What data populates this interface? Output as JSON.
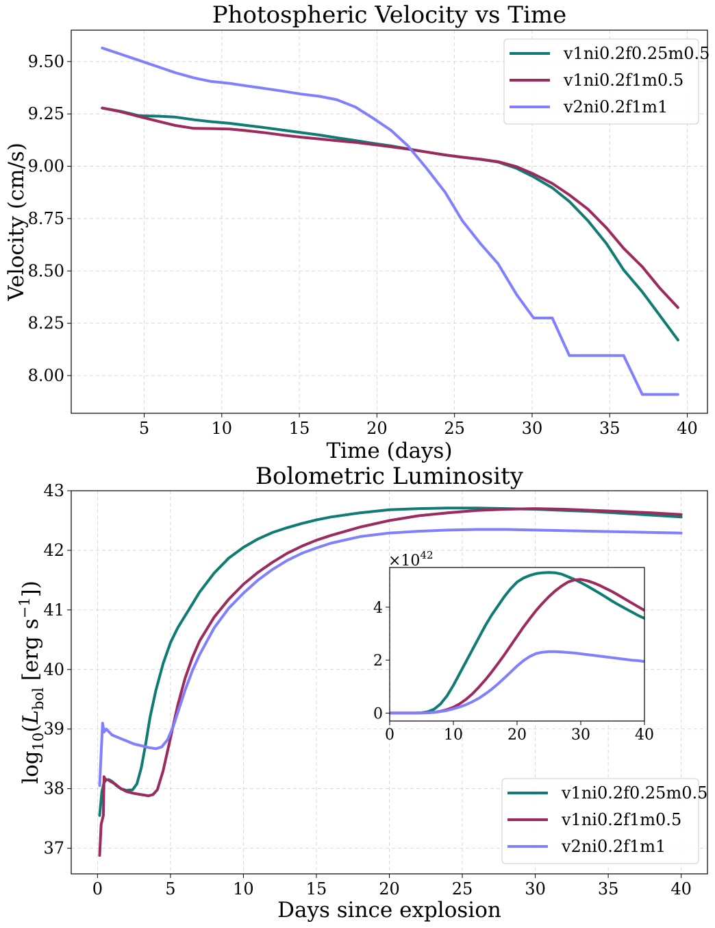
{
  "colors": {
    "series1": "#0f7b73",
    "series2": "#9c2a5c",
    "series3": "#8080ff"
  },
  "chart_data": [
    {
      "type": "line",
      "title": "Photospheric Velocity vs Time",
      "xlabel": "Time (days)",
      "ylabel": "Velocity (cm/s)",
      "xlim": [
        0.3,
        41.3
      ],
      "ylim": [
        7.82,
        9.65
      ],
      "xticks": [
        5,
        10,
        15,
        20,
        25,
        30,
        35,
        40
      ],
      "xtick_labels": [
        "5",
        "10",
        "15",
        "20",
        "25",
        "30",
        "35",
        "40"
      ],
      "yticks": [
        8.0,
        8.25,
        8.5,
        8.75,
        9.0,
        9.25,
        9.5
      ],
      "ytick_labels": [
        "8.00",
        "8.25",
        "8.50",
        "8.75",
        "9.00",
        "9.25",
        "9.50"
      ],
      "grid": true,
      "legend_position": "upper right",
      "series": [
        {
          "name": "v1ni0.2f0.25m0.5",
          "color": "#0f7b73",
          "x": [
            2.3,
            3.5,
            4.7,
            5.9,
            7.0,
            8.2,
            9.3,
            10.5,
            11.6,
            12.8,
            14.0,
            15.1,
            16.3,
            17.4,
            18.6,
            19.7,
            20.9,
            22.0,
            23.2,
            24.4,
            25.5,
            26.7,
            27.8,
            29.0,
            30.1,
            31.3,
            32.4,
            33.6,
            34.8,
            35.9,
            37.1,
            38.2,
            39.4
          ],
          "y": [
            9.278,
            9.262,
            9.241,
            9.239,
            9.235,
            9.222,
            9.213,
            9.205,
            9.195,
            9.184,
            9.172,
            9.161,
            9.149,
            9.136,
            9.123,
            9.11,
            9.097,
            9.083,
            9.068,
            9.054,
            9.043,
            9.033,
            9.02,
            8.99,
            8.949,
            8.897,
            8.832,
            8.74,
            8.63,
            8.505,
            8.4,
            8.29,
            8.17
          ]
        },
        {
          "name": "v1ni0.2f1m0.5",
          "color": "#9c2a5c",
          "x": [
            2.3,
            3.5,
            4.7,
            5.9,
            7.0,
            8.2,
            9.3,
            10.5,
            11.6,
            12.8,
            14.0,
            15.1,
            16.3,
            17.4,
            18.6,
            19.7,
            20.9,
            22.0,
            23.2,
            24.4,
            25.5,
            26.7,
            27.8,
            29.0,
            30.1,
            31.3,
            32.4,
            33.6,
            34.8,
            35.9,
            37.1,
            38.2,
            39.4
          ],
          "y": [
            9.278,
            9.26,
            9.237,
            9.215,
            9.195,
            9.181,
            9.18,
            9.178,
            9.17,
            9.16,
            9.148,
            9.139,
            9.13,
            9.122,
            9.114,
            9.104,
            9.093,
            9.082,
            9.068,
            9.054,
            9.043,
            9.033,
            9.022,
            8.998,
            8.963,
            8.918,
            8.863,
            8.795,
            8.705,
            8.608,
            8.52,
            8.42,
            8.325
          ]
        },
        {
          "name": "v2ni0.2f1m1",
          "color": "#8080ff",
          "x": [
            2.3,
            3.5,
            4.7,
            5.9,
            7.0,
            8.2,
            9.3,
            10.5,
            11.6,
            12.8,
            14.0,
            15.1,
            16.3,
            17.4,
            18.6,
            19.7,
            20.9,
            22.0,
            23.2,
            24.4,
            25.5,
            26.7,
            27.8,
            29.0,
            30.1,
            31.3,
            32.4,
            33.6,
            34.8,
            35.9,
            37.1,
            38.2,
            39.4
          ],
          "y": [
            9.565,
            9.535,
            9.505,
            9.475,
            9.447,
            9.422,
            9.405,
            9.396,
            9.384,
            9.371,
            9.358,
            9.345,
            9.334,
            9.318,
            9.283,
            9.232,
            9.172,
            9.097,
            8.99,
            8.875,
            8.74,
            8.628,
            8.535,
            8.387,
            8.275,
            8.275,
            8.096,
            8.096,
            8.096,
            8.096,
            7.91,
            7.91,
            7.91
          ]
        }
      ]
    },
    {
      "type": "line",
      "title": "Bolometric Luminosity",
      "xlabel": "Days since explosion",
      "ylabel": "log10(L_bol [erg s^-1])",
      "xlim": [
        -1.8,
        41.8
      ],
      "ylim": [
        36.57,
        43.0
      ],
      "xticks": [
        0,
        5,
        10,
        15,
        20,
        25,
        30,
        35,
        40
      ],
      "xtick_labels": [
        "0",
        "5",
        "10",
        "15",
        "20",
        "25",
        "30",
        "35",
        "40"
      ],
      "yticks": [
        37,
        38,
        39,
        40,
        41,
        42,
        43
      ],
      "ytick_labels": [
        "37",
        "38",
        "39",
        "40",
        "41",
        "42",
        "43"
      ],
      "grid": true,
      "legend_position": "lower right",
      "series": [
        {
          "name": "v1ni0.2f0.25m0.5",
          "color": "#0f7b73",
          "x": [
            0.15,
            0.3,
            0.45,
            0.6,
            0.8,
            1.0,
            1.3,
            1.6,
            2.0,
            2.4,
            2.7,
            3.0,
            3.3,
            3.6,
            4.0,
            4.5,
            5.0,
            5.5,
            6.0,
            6.5,
            7.0,
            8.0,
            9.0,
            10.0,
            11.0,
            12.0,
            13.0,
            14.0,
            15.0,
            16.0,
            18.0,
            20.0,
            22.0,
            24.0,
            26.0,
            28.0,
            30.0,
            32.0,
            34.0,
            36.0,
            38.0,
            40.0
          ],
          "y": [
            37.55,
            37.95,
            38.1,
            38.15,
            38.15,
            38.12,
            38.05,
            38.0,
            37.97,
            37.98,
            38.08,
            38.35,
            38.75,
            39.2,
            39.65,
            40.1,
            40.45,
            40.7,
            40.9,
            41.1,
            41.3,
            41.62,
            41.87,
            42.05,
            42.19,
            42.3,
            42.38,
            42.45,
            42.51,
            42.56,
            42.63,
            42.68,
            42.7,
            42.71,
            42.71,
            42.7,
            42.69,
            42.67,
            42.65,
            42.62,
            42.59,
            42.56
          ]
        },
        {
          "name": "v1ni0.2f1m0.5",
          "color": "#9c2a5c",
          "x": [
            0.15,
            0.25,
            0.4,
            0.45,
            0.55,
            0.7,
            0.9,
            1.2,
            1.6,
            2.0,
            2.5,
            3.0,
            3.5,
            3.8,
            4.1,
            4.5,
            5.0,
            5.5,
            6.0,
            6.5,
            7.0,
            8.0,
            9.0,
            10.0,
            11.0,
            12.0,
            13.0,
            14.0,
            15.0,
            16.0,
            18.0,
            20.0,
            22.0,
            24.0,
            26.0,
            28.0,
            30.0,
            32.0,
            34.0,
            36.0,
            38.0,
            40.0
          ],
          "y": [
            36.88,
            37.4,
            37.55,
            38.2,
            38.15,
            38.15,
            38.12,
            38.08,
            38.0,
            37.95,
            37.92,
            37.9,
            37.88,
            37.9,
            37.98,
            38.3,
            38.85,
            39.4,
            39.85,
            40.2,
            40.48,
            40.88,
            41.18,
            41.43,
            41.63,
            41.8,
            41.95,
            42.07,
            42.17,
            42.25,
            42.39,
            42.5,
            42.58,
            42.63,
            42.67,
            42.69,
            42.7,
            42.69,
            42.67,
            42.65,
            42.63,
            42.6
          ]
        },
        {
          "name": "v2ni0.2f1m1",
          "color": "#8080ff",
          "x": [
            0.15,
            0.25,
            0.35,
            0.45,
            0.6,
            0.8,
            1.0,
            1.5,
            2.0,
            2.5,
            3.0,
            3.5,
            4.0,
            4.4,
            4.8,
            5.2,
            5.6,
            6.0,
            6.5,
            7.0,
            8.0,
            9.0,
            10.0,
            11.0,
            12.0,
            13.0,
            14.0,
            15.0,
            16.0,
            18.0,
            20.0,
            22.0,
            24.0,
            26.0,
            28.0,
            30.0,
            32.0,
            34.0,
            36.0,
            38.0,
            40.0
          ],
          "y": [
            38.05,
            38.6,
            39.1,
            38.95,
            39.0,
            38.95,
            38.9,
            38.85,
            38.8,
            38.75,
            38.72,
            38.69,
            38.67,
            38.7,
            38.82,
            39.05,
            39.35,
            39.65,
            39.98,
            40.25,
            40.7,
            41.03,
            41.28,
            41.5,
            41.68,
            41.83,
            41.95,
            42.04,
            42.12,
            42.23,
            42.29,
            42.32,
            42.34,
            42.35,
            42.35,
            42.34,
            42.33,
            42.32,
            42.31,
            42.3,
            42.29
          ]
        }
      ]
    },
    {
      "type": "line",
      "title": "",
      "xlabel": "",
      "ylabel": "",
      "offset_text": "×10^42",
      "xlim": [
        0,
        40
      ],
      "ylim": [
        -0.3,
        5.5
      ],
      "xticks": [
        0,
        10,
        20,
        30,
        40
      ],
      "xtick_labels": [
        "0",
        "10",
        "20",
        "30",
        "40"
      ],
      "yticks": [
        0,
        2,
        4
      ],
      "ytick_labels": [
        "0",
        "2",
        "4"
      ],
      "grid": false,
      "series": [
        {
          "name": "v1ni0.2f0.25m0.5",
          "color": "#0f7b73",
          "x": [
            0,
            2,
            4,
            5,
            6,
            7,
            8,
            9,
            10,
            11,
            12,
            13,
            14,
            15,
            16,
            17,
            18,
            19,
            20,
            21,
            22,
            23,
            24,
            25,
            26,
            27,
            28,
            29,
            30,
            31,
            32,
            33,
            34,
            35,
            36,
            37,
            38,
            39,
            40
          ],
          "y": [
            0.0,
            0.0,
            0.0,
            0.01,
            0.05,
            0.15,
            0.35,
            0.65,
            1.05,
            1.5,
            1.95,
            2.4,
            2.85,
            3.3,
            3.7,
            4.05,
            4.4,
            4.7,
            4.95,
            5.1,
            5.2,
            5.27,
            5.3,
            5.31,
            5.3,
            5.25,
            5.15,
            5.05,
            4.93,
            4.8,
            4.66,
            4.52,
            4.37,
            4.22,
            4.08,
            3.95,
            3.82,
            3.69,
            3.58
          ]
        },
        {
          "name": "v1ni0.2f1m0.5",
          "color": "#9c2a5c",
          "x": [
            0,
            2,
            4,
            6,
            7,
            8,
            9,
            10,
            11,
            12,
            13,
            14,
            15,
            16,
            17,
            18,
            19,
            20,
            21,
            22,
            23,
            24,
            25,
            26,
            27,
            28,
            29,
            30,
            31,
            32,
            33,
            34,
            35,
            36,
            37,
            38,
            39,
            40
          ],
          "y": [
            0.0,
            0.0,
            0.0,
            0.01,
            0.03,
            0.07,
            0.13,
            0.22,
            0.35,
            0.52,
            0.73,
            0.98,
            1.25,
            1.55,
            1.87,
            2.2,
            2.55,
            2.9,
            3.25,
            3.57,
            3.88,
            4.15,
            4.4,
            4.62,
            4.8,
            4.95,
            5.03,
            5.05,
            5.0,
            4.92,
            4.82,
            4.7,
            4.58,
            4.44,
            4.3,
            4.16,
            4.02,
            3.88
          ]
        },
        {
          "name": "v2ni0.2f1m1",
          "color": "#8080ff",
          "x": [
            0,
            2,
            4,
            6,
            7,
            8,
            9,
            10,
            11,
            12,
            13,
            14,
            15,
            16,
            17,
            18,
            19,
            20,
            21,
            22,
            23,
            24,
            25,
            26,
            27,
            28,
            29,
            30,
            31,
            32,
            33,
            34,
            35,
            36,
            37,
            38,
            39,
            40
          ],
          "y": [
            0.0,
            0.0,
            0.0,
            0.01,
            0.03,
            0.06,
            0.1,
            0.16,
            0.23,
            0.32,
            0.43,
            0.56,
            0.72,
            0.9,
            1.1,
            1.32,
            1.55,
            1.78,
            1.98,
            2.14,
            2.25,
            2.3,
            2.32,
            2.32,
            2.31,
            2.29,
            2.27,
            2.24,
            2.21,
            2.18,
            2.15,
            2.12,
            2.09,
            2.06,
            2.03,
            2.0,
            1.98,
            1.95
          ]
        }
      ]
    }
  ]
}
